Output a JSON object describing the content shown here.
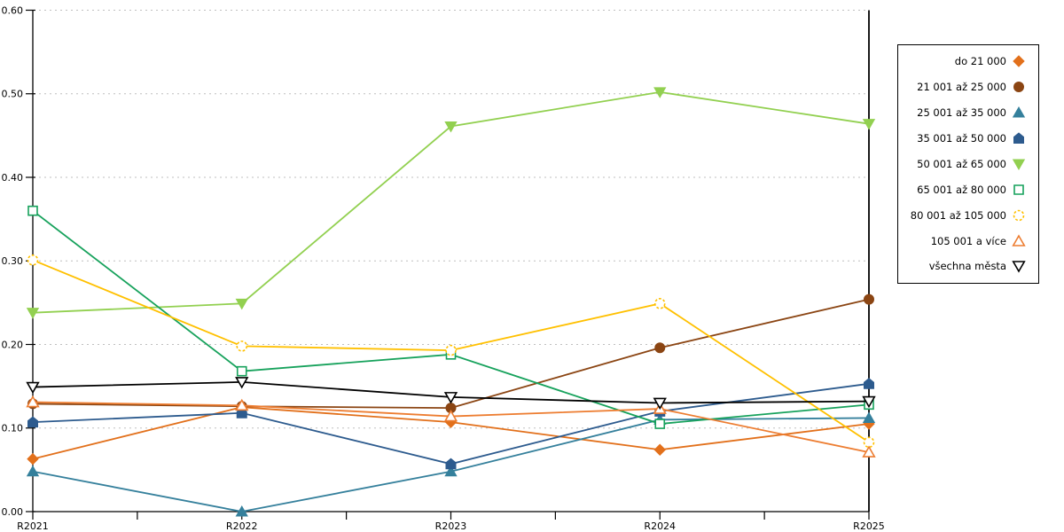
{
  "chart_data": {
    "type": "line",
    "title": "",
    "xlabel": "",
    "ylabel": "",
    "categories": [
      "R2021",
      "R2022",
      "R2023",
      "R2024",
      "R2025"
    ],
    "ylim": [
      0.0,
      0.6
    ],
    "ytick_step": 0.1,
    "ytick_labels": [
      "0.00",
      "0.10",
      "0.20",
      "0.30",
      "0.40",
      "0.50",
      "0.60"
    ],
    "grid": "horizontal-dotted",
    "grid_color": "#bfbfbf",
    "legend_position": "right-outside",
    "series": [
      {
        "name": "do 21 000",
        "color": "#e2701b",
        "marker": "diamond",
        "fill": "filled",
        "values": [
          0.063,
          0.125,
          0.107,
          0.074,
          0.105
        ]
      },
      {
        "name": "21 001 až 25 000",
        "color": "#8b4513",
        "marker": "circle",
        "fill": "filled",
        "values": [
          0.129,
          0.126,
          0.124,
          0.196,
          0.254
        ]
      },
      {
        "name": "25 001 až 35 000",
        "color": "#35809c",
        "marker": "triangle-up",
        "fill": "filled",
        "values": [
          0.048,
          0.0,
          0.048,
          0.11,
          0.112
        ]
      },
      {
        "name": "35 001 až 50 000",
        "color": "#2d5b8e",
        "marker": "pentagon",
        "fill": "filled",
        "values": [
          0.107,
          0.118,
          0.057,
          0.12,
          0.153
        ]
      },
      {
        "name": "50 001 až 65 000",
        "color": "#92d050",
        "marker": "triangle-down",
        "fill": "filled",
        "values": [
          0.238,
          0.249,
          0.461,
          0.502,
          0.464
        ]
      },
      {
        "name": "65 001 až 80 000",
        "color": "#17a25c",
        "marker": "square",
        "fill": "open",
        "values": [
          0.36,
          0.168,
          0.188,
          0.105,
          0.128
        ]
      },
      {
        "name": "80 001 až 105 000",
        "color": "#ffc000",
        "marker": "circle-dashed",
        "fill": "open",
        "values": [
          0.301,
          0.198,
          0.193,
          0.249,
          0.083
        ]
      },
      {
        "name": "105 001 a více",
        "color": "#ed7d31",
        "marker": "triangle-up",
        "fill": "open",
        "values": [
          0.131,
          0.127,
          0.114,
          0.123,
          0.071
        ]
      },
      {
        "name": "všechna města",
        "color": "#000000",
        "marker": "triangle-down",
        "fill": "open",
        "values": [
          0.149,
          0.155,
          0.137,
          0.13,
          0.132
        ]
      }
    ]
  }
}
